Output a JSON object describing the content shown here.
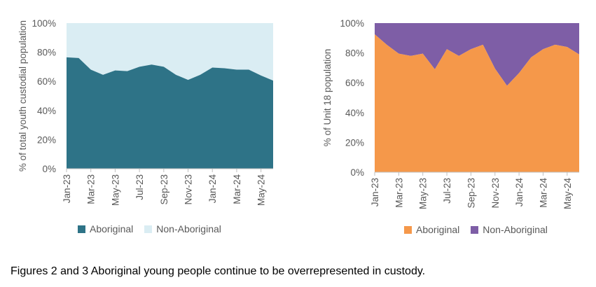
{
  "caption": "Figures 2 and 3 Aboriginal young people continue to be overrepresented in custody.",
  "chart_data": [
    {
      "type": "area",
      "stacked": true,
      "ylabel": "% of total youth custodial population",
      "ylim": [
        0,
        100
      ],
      "yticks": [
        "0%",
        "20%",
        "40%",
        "60%",
        "80%",
        "100%"
      ],
      "x": [
        "Jan-23",
        "Feb-23",
        "Mar-23",
        "Apr-23",
        "May-23",
        "Jun-23",
        "Jul-23",
        "Aug-23",
        "Sep-23",
        "Oct-23",
        "Nov-23",
        "Dec-23",
        "Jan-24",
        "Feb-24",
        "Mar-24",
        "Apr-24",
        "May-24",
        "Jun-24"
      ],
      "xtick_labels": [
        "Jan-23",
        "Mar-23",
        "May-23",
        "Jul-23",
        "Sep-23",
        "Nov-23",
        "Jan-24",
        "Mar-24",
        "May-24"
      ],
      "series": [
        {
          "name": "Aboriginal",
          "color": "#2e7387",
          "values": [
            76.5,
            76,
            68,
            64.5,
            67.5,
            67,
            70,
            71.5,
            70,
            64.5,
            61,
            64.5,
            69.5,
            69,
            68,
            68,
            64,
            60.5
          ]
        },
        {
          "name": "Non-Aboriginal",
          "color": "#daedf3",
          "values": [
            23.5,
            24,
            32,
            35.5,
            32.5,
            33,
            30,
            28.5,
            30,
            35.5,
            39,
            35.5,
            30.5,
            31,
            32,
            32,
            36,
            39.5
          ]
        }
      ],
      "legend_position": "bottom-left"
    },
    {
      "type": "area",
      "stacked": true,
      "ylabel": "% of Unit 18 population",
      "ylim": [
        0,
        100
      ],
      "yticks": [
        "0%",
        "20%",
        "40%",
        "60%",
        "80%",
        "100%"
      ],
      "x": [
        "Jan-23",
        "Feb-23",
        "Mar-23",
        "Apr-23",
        "May-23",
        "Jun-23",
        "Jul-23",
        "Aug-23",
        "Sep-23",
        "Oct-23",
        "Nov-23",
        "Dec-23",
        "Jan-24",
        "Feb-24",
        "Mar-24",
        "Apr-24",
        "May-24",
        "Jun-24"
      ],
      "xtick_labels": [
        "Jan-23",
        "Mar-23",
        "May-23",
        "Jul-23",
        "Sep-23",
        "Nov-23",
        "Jan-24",
        "Mar-24",
        "May-24"
      ],
      "series": [
        {
          "name": "Aboriginal",
          "color": "#f5984a",
          "values": [
            92.5,
            85.5,
            79.5,
            78,
            79.5,
            69,
            82.5,
            78,
            82.5,
            85.5,
            69.5,
            58,
            66.5,
            77,
            82.5,
            85.5,
            84,
            79
          ]
        },
        {
          "name": "Non-Aboriginal",
          "color": "#7e5ea6",
          "values": [
            7.5,
            14.5,
            20.5,
            22,
            20.5,
            31,
            17.5,
            22,
            17.5,
            14.5,
            30.5,
            42,
            33.5,
            23,
            17.5,
            14.5,
            16,
            21
          ]
        }
      ],
      "legend_position": "bottom-center"
    }
  ]
}
